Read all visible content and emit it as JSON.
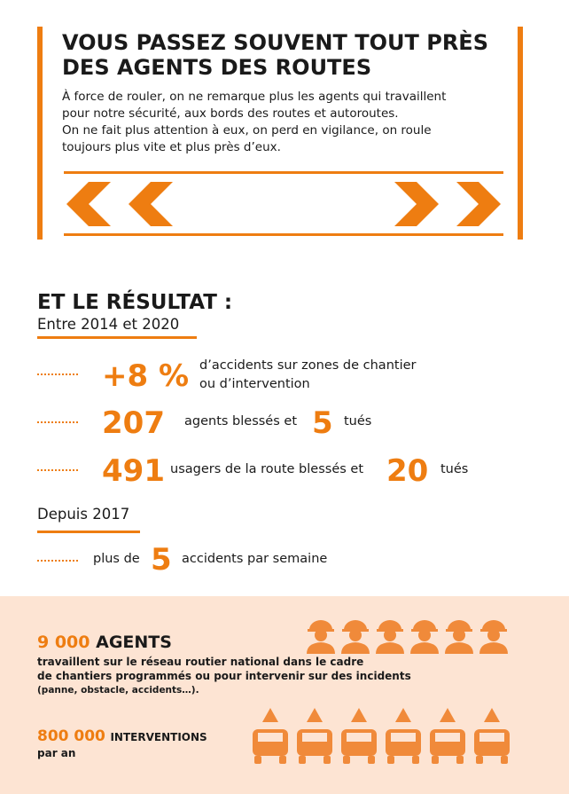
{
  "header": {
    "title_lines": [
      "VOUS PASSEZ SOUVENT TOUT PRÈS",
      "DES AGENTS DES ROUTES"
    ],
    "intro_lines": [
      "À force de rouler, on ne remarque plus les agents qui travaillent",
      "pour notre sécurité, aux bords des routes et autoroutes.",
      "On ne fait plus attention à eux, on perd en vigilance, on roule",
      "toujours plus vite et plus près d’eux."
    ]
  },
  "result": {
    "title": "ET LE RÉSULTAT :",
    "period1": "Entre 2014 et 2020",
    "stats": [
      {
        "figure": "+8 %",
        "text_lines": [
          "d’accidents sur zones de chantier",
          "ou d’intervention"
        ]
      },
      {
        "figure": "207",
        "text": "agents blessés et",
        "figure2": "5",
        "text2": "tués"
      },
      {
        "figure": "491",
        "text": "usagers de la route blessés et",
        "figure2": "20",
        "text2": "tués"
      }
    ],
    "period2": "Depuis 2017",
    "weekly": {
      "text": "plus de",
      "figure": "5",
      "text2": "accidents par semaine"
    }
  },
  "footer": {
    "agents_figure": "9 000",
    "agents_label": "AGENTS",
    "agents_lines": [
      "travaillent sur le réseau routier national dans le cadre",
      "de chantiers programmés ou pour intervenir sur des incidents",
      "(panne, obstacle, accidents…)."
    ],
    "interventions_figure": "800 000",
    "interventions_label": "INTERVENTIONS",
    "interventions_text": "par an"
  }
}
